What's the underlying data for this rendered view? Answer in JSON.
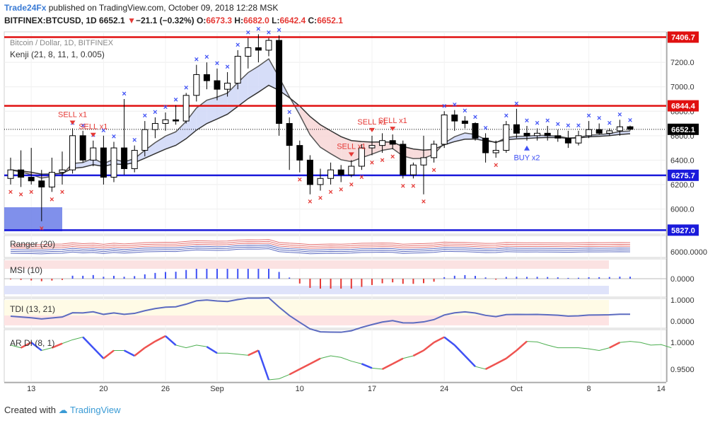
{
  "header": {
    "author": "Trade24Fx",
    "published_text": "published on TradingView.com, October 09, 2018 12:28 MSK",
    "symbol": "BITFINEX:BTCUSD, 1D",
    "last": "6652.1",
    "change": "−21.1 (−0.32%)",
    "o_label": "O:",
    "o_value": "6673.3",
    "h_label": "H:",
    "h_value": "6682.0",
    "l_label": "L:",
    "l_value": "6642.4",
    "c_label": "C:",
    "c_value": "6652.1"
  },
  "footer": {
    "created_with": "Created with",
    "brand": "TradingView"
  },
  "colors": {
    "bull": "#ffffff",
    "bear": "#000000",
    "support": "#1a1adb",
    "resistance": "#e01010",
    "sell_marker": "#e53935",
    "buy_marker": "#3f51f5",
    "band_up": "#cfd7f7",
    "band_down": "#f7d6d6"
  },
  "chart_data": [
    {
      "type": "candlestick",
      "title": "Bitcoin / Dollar, 1D, BITFINEX",
      "indicator": "Kenji (21, 8, 11, 1, 0.005)",
      "x_ticks": [
        "13",
        "20",
        "26",
        "Sep",
        "10",
        "17",
        "24",
        "Oct",
        "8",
        "14"
      ],
      "x_tick_index": [
        2,
        9,
        15,
        20,
        28,
        35,
        42,
        49,
        56,
        63
      ],
      "y_ticks": [
        6000,
        6200,
        6400,
        6600,
        6800,
        7000,
        7200
      ],
      "ylim": [
        5800,
        7450
      ],
      "levels": [
        {
          "label": "7406.7",
          "value": 7406.7,
          "kind": "resistance"
        },
        {
          "label": "6844.4",
          "value": 6844.4,
          "kind": "resistance"
        },
        {
          "label": "6652.1",
          "value": 6652.1,
          "kind": "last"
        },
        {
          "label": "6275.7",
          "value": 6275.7,
          "kind": "support"
        },
        {
          "label": "5827.0",
          "value": 5827.0,
          "kind": "support"
        }
      ],
      "candles": [
        [
          6250,
          6420,
          6200,
          6320
        ],
        [
          6320,
          6480,
          6180,
          6260
        ],
        [
          6260,
          6500,
          6200,
          6230
        ],
        [
          6230,
          6320,
          5900,
          6180
        ],
        [
          6180,
          6420,
          6140,
          6300
        ],
        [
          6300,
          6470,
          6200,
          6320
        ],
        [
          6320,
          6660,
          6290,
          6600
        ],
        [
          6600,
          6640,
          6380,
          6400
        ],
        [
          6400,
          6560,
          6350,
          6500
        ],
        [
          6500,
          6600,
          6200,
          6260
        ],
        [
          6260,
          6550,
          6220,
          6500
        ],
        [
          6500,
          6900,
          6280,
          6330
        ],
        [
          6330,
          6520,
          6300,
          6480
        ],
        [
          6480,
          6720,
          6430,
          6650
        ],
        [
          6650,
          6750,
          6580,
          6700
        ],
        [
          6700,
          6790,
          6640,
          6730
        ],
        [
          6730,
          6850,
          6690,
          6720
        ],
        [
          6720,
          6950,
          6700,
          6930
        ],
        [
          6930,
          7180,
          6880,
          7100
        ],
        [
          7100,
          7200,
          6980,
          7050
        ],
        [
          7050,
          7150,
          6890,
          6980
        ],
        [
          6980,
          7120,
          6920,
          7030
        ],
        [
          7030,
          7300,
          6980,
          7250
        ],
        [
          7250,
          7400,
          7150,
          7320
        ],
        [
          7320,
          7430,
          7200,
          7300
        ],
        [
          7300,
          7400,
          7250,
          7380
        ],
        [
          7380,
          7420,
          6600,
          6700
        ],
        [
          6700,
          6750,
          6320,
          6520
        ],
        [
          6520,
          6560,
          6300,
          6400
        ],
        [
          6400,
          6440,
          6120,
          6200
        ],
        [
          6200,
          6330,
          6150,
          6250
        ],
        [
          6250,
          6380,
          6200,
          6320
        ],
        [
          6320,
          6360,
          6220,
          6280
        ],
        [
          6280,
          6400,
          6260,
          6350
        ],
        [
          6350,
          6530,
          6320,
          6500
        ],
        [
          6500,
          6600,
          6440,
          6520
        ],
        [
          6520,
          6620,
          6460,
          6560
        ],
        [
          6560,
          6610,
          6490,
          6530
        ],
        [
          6530,
          6560,
          6250,
          6280
        ],
        [
          6280,
          6380,
          6250,
          6360
        ],
        [
          6360,
          6600,
          6120,
          6420
        ],
        [
          6420,
          6560,
          6380,
          6530
        ],
        [
          6530,
          6800,
          6500,
          6770
        ],
        [
          6770,
          6810,
          6640,
          6720
        ],
        [
          6720,
          6760,
          6660,
          6700
        ],
        [
          6700,
          6710,
          6560,
          6580
        ],
        [
          6580,
          6620,
          6380,
          6460
        ],
        [
          6460,
          6560,
          6420,
          6480
        ],
        [
          6480,
          6720,
          6460,
          6690
        ],
        [
          6690,
          6820,
          6580,
          6620
        ],
        [
          6620,
          6680,
          6560,
          6600
        ],
        [
          6600,
          6660,
          6560,
          6620
        ],
        [
          6620,
          6680,
          6560,
          6600
        ],
        [
          6600,
          6650,
          6550,
          6580
        ],
        [
          6580,
          6640,
          6500,
          6540
        ],
        [
          6540,
          6640,
          6520,
          6600
        ],
        [
          6600,
          6720,
          6580,
          6650
        ],
        [
          6650,
          6700,
          6610,
          6620
        ],
        [
          6620,
          6660,
          6600,
          6640
        ],
        [
          6640,
          6730,
          6600,
          6673
        ],
        [
          6673.3,
          6682,
          6642.4,
          6652.1
        ]
      ],
      "sell_labels": [
        {
          "text": "SELL x1",
          "index": 6
        },
        {
          "text": "SELL x1",
          "index": 8
        },
        {
          "text": "SELL x1",
          "index": 33
        },
        {
          "text": "SELL x1",
          "index": 35
        },
        {
          "text": "SELL x1",
          "index": 37
        }
      ],
      "buy_labels": [
        {
          "text": "BUY x2",
          "index": 50
        }
      ]
    },
    {
      "type": "line",
      "title": "Ranger (20)",
      "y_ticks": [
        "6000.0000"
      ]
    },
    {
      "type": "bar",
      "title": "MSI (10)",
      "y_ticks": [
        "0.0000"
      ]
    },
    {
      "type": "line",
      "title": "TDI (13, 21)",
      "y_ticks": [
        "1.0000",
        "0.0000"
      ]
    },
    {
      "type": "line",
      "title": "AR DI (8, 1)",
      "y_ticks": [
        "1.0000",
        "0.9500"
      ],
      "ylim": [
        0.93,
        1.02
      ],
      "values": [
        0.995,
        0.99,
        1.0,
        0.985,
        0.99,
        0.998,
        1.005,
        1.01,
        0.99,
        0.97,
        0.985,
        0.985,
        0.975,
        0.99,
        1.002,
        1.012,
        0.995,
        0.99,
        0.995,
        0.992,
        0.98,
        0.98,
        0.978,
        0.976,
        0.985,
        0.93,
        0.932,
        0.94,
        0.95,
        0.96,
        0.97,
        0.975,
        0.972,
        0.965,
        0.96,
        0.952,
        0.95,
        0.96,
        0.97,
        0.975,
        0.985,
        1.0,
        1.01,
        0.995,
        0.975,
        0.955,
        0.95,
        0.96,
        0.97,
        0.985,
        1.002,
        1.001,
        0.995,
        0.99,
        0.99,
        0.99,
        0.988,
        0.985,
        0.99,
        1.0,
        1.002,
        1.0,
        0.995,
        0.996,
        0.99
      ]
    }
  ]
}
